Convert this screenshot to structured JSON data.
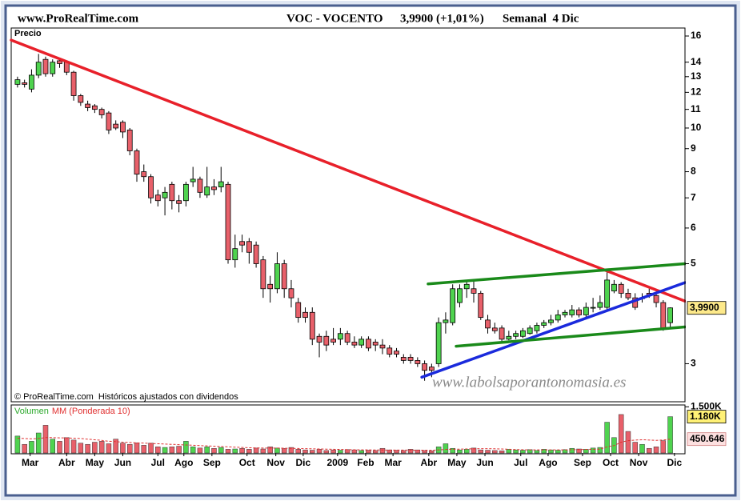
{
  "chart_data": {
    "type": "candlestick",
    "site": "www.ProRealTime.com",
    "title": "VOC - VOCENTO",
    "quote": "3,9900 (+1,01%)",
    "period": "Semanal  4 Dic",
    "label": "Precio",
    "footnote": "© ProRealTime.com  Históricos ajustados con dividendos",
    "watermark": "www.labolsaporantonomasia.es",
    "log_scale": true,
    "up_color": "#4fd34f",
    "down_color": "#e8606a",
    "x": [
      0,
      1,
      2,
      3,
      4,
      5,
      6,
      7,
      8,
      9,
      10,
      11,
      12,
      13,
      14,
      15,
      16,
      17,
      18,
      19,
      20,
      21,
      22,
      23,
      24,
      25,
      26,
      27,
      28,
      29,
      30,
      31,
      32,
      33,
      34,
      35,
      36,
      37,
      38,
      39,
      40,
      41,
      42,
      43,
      44,
      45,
      46,
      47,
      48,
      49,
      50,
      51,
      52,
      53,
      54,
      55,
      56,
      57,
      58,
      59,
      60,
      61,
      62,
      63,
      64,
      65,
      66,
      67,
      68,
      69,
      70,
      71,
      72,
      73,
      74,
      75,
      76,
      77,
      78,
      79,
      80,
      81,
      82,
      83,
      84,
      85,
      86,
      87,
      88,
      89,
      90,
      91,
      92,
      93
    ],
    "open": [
      12.5,
      12.6,
      12.2,
      13.1,
      14.2,
      13.2,
      14.1,
      14.0,
      13.3,
      11.8,
      11.3,
      11.2,
      11.0,
      10.8,
      10.2,
      10.3,
      9.9,
      8.9,
      8.0,
      7.8,
      7.1,
      7.0,
      7.5,
      6.9,
      6.9,
      7.6,
      7.7,
      7.1,
      7.4,
      7.4,
      7.5,
      5.1,
      5.6,
      5.6,
      5.5,
      5.1,
      4.5,
      4.4,
      5.0,
      4.4,
      4.1,
      3.9,
      3.9,
      3.45,
      3.45,
      3.4,
      3.4,
      3.5,
      3.35,
      3.3,
      3.4,
      3.35,
      3.3,
      3.25,
      3.2,
      3.1,
      3.1,
      3.05,
      3.0,
      2.95,
      3.0,
      3.7,
      3.7,
      4.1,
      4.4,
      4.4,
      4.3,
      3.75,
      3.6,
      3.6,
      3.4,
      3.45,
      3.45,
      3.5,
      3.55,
      3.65,
      3.7,
      3.75,
      3.85,
      3.85,
      3.95,
      3.85,
      4.0,
      4.0,
      4.0,
      4.35,
      4.5,
      4.3,
      4.2,
      4.2,
      4.3,
      4.25,
      4.1,
      3.7
    ],
    "high": [
      13.0,
      12.8,
      13.5,
      14.6,
      14.4,
      14.2,
      14.3,
      14.1,
      13.4,
      11.9,
      11.5,
      11.3,
      11.1,
      10.9,
      10.4,
      10.4,
      10.0,
      9.0,
      8.3,
      7.9,
      7.3,
      7.4,
      7.6,
      7.1,
      7.6,
      8.2,
      7.8,
      8.2,
      7.7,
      8.2,
      7.6,
      5.8,
      5.8,
      5.7,
      5.6,
      5.2,
      4.7,
      5.3,
      5.1,
      4.6,
      4.2,
      4.0,
      4.0,
      3.5,
      3.55,
      3.6,
      3.6,
      3.55,
      3.45,
      3.45,
      3.45,
      3.4,
      3.4,
      3.3,
      3.25,
      3.15,
      3.15,
      3.1,
      3.05,
      3.0,
      3.8,
      3.9,
      4.5,
      4.5,
      4.6,
      4.6,
      4.35,
      3.85,
      3.7,
      3.65,
      3.55,
      3.55,
      3.6,
      3.65,
      3.7,
      3.75,
      3.85,
      3.95,
      3.95,
      4.05,
      4.0,
      4.1,
      4.2,
      4.25,
      4.8,
      4.6,
      4.55,
      4.4,
      4.3,
      4.3,
      4.4,
      4.3,
      4.15,
      4.0
    ],
    "low": [
      12.3,
      12.3,
      12.0,
      12.9,
      13.0,
      13.0,
      13.6,
      13.1,
      11.5,
      11.2,
      10.9,
      10.8,
      10.5,
      9.7,
      9.9,
      9.5,
      8.7,
      7.6,
      7.6,
      6.8,
      6.7,
      6.4,
      6.6,
      6.5,
      6.7,
      7.4,
      7.0,
      7.0,
      7.1,
      7.2,
      5.0,
      4.9,
      5.3,
      5.0,
      4.9,
      4.2,
      4.1,
      4.3,
      4.2,
      4.0,
      3.7,
      3.7,
      3.3,
      3.1,
      3.2,
      3.3,
      3.3,
      3.3,
      3.25,
      3.25,
      3.2,
      3.2,
      3.15,
      3.1,
      3.1,
      3.0,
      3.0,
      2.95,
      2.75,
      2.8,
      2.95,
      3.5,
      3.65,
      4.0,
      4.2,
      4.1,
      3.75,
      3.5,
      3.5,
      3.35,
      3.38,
      3.4,
      3.42,
      3.48,
      3.5,
      3.6,
      3.65,
      3.7,
      3.8,
      3.8,
      3.8,
      3.8,
      3.9,
      3.95,
      3.95,
      4.3,
      4.2,
      4.15,
      3.95,
      4.1,
      4.2,
      4.0,
      3.55,
      3.6
    ],
    "close": [
      12.8,
      12.5,
      13.1,
      14.0,
      13.2,
      14.0,
      13.9,
      13.3,
      11.8,
      11.4,
      11.1,
      11.0,
      10.7,
      9.9,
      10.0,
      9.8,
      8.9,
      7.9,
      7.8,
      7.0,
      6.9,
      7.2,
      6.9,
      6.8,
      7.5,
      7.7,
      7.2,
      7.4,
      7.3,
      7.6,
      5.1,
      5.4,
      5.5,
      5.3,
      5.0,
      4.4,
      4.4,
      5.0,
      4.4,
      4.2,
      3.8,
      3.8,
      3.4,
      3.35,
      3.3,
      3.35,
      3.5,
      3.35,
      3.3,
      3.4,
      3.25,
      3.3,
      3.25,
      3.15,
      3.15,
      3.05,
      3.05,
      3.0,
      2.9,
      2.9,
      3.7,
      3.75,
      4.4,
      4.4,
      4.5,
      4.3,
      3.8,
      3.6,
      3.55,
      3.4,
      3.45,
      3.5,
      3.55,
      3.6,
      3.65,
      3.7,
      3.75,
      3.85,
      3.9,
      3.95,
      3.85,
      4.0,
      4.0,
      4.1,
      4.6,
      4.5,
      4.3,
      4.2,
      4.0,
      4.2,
      4.25,
      4.1,
      3.6,
      3.99
    ],
    "price_marker": {
      "value": 3.99,
      "label": "3,9900"
    },
    "trendlines": [
      {
        "color": "#e8202a",
        "x": [
          -0.9,
          95.1
        ],
        "values": [
          15.67,
          4.13
        ]
      },
      {
        "color": "#1a2adc",
        "x": [
          57.6,
          95.1
        ],
        "values": [
          2.8,
          4.54
        ]
      },
      {
        "color": "#1a8a1a",
        "x": [
          58.5,
          95.1
        ],
        "values": [
          4.51,
          5.0
        ]
      },
      {
        "color": "#1a8a1a",
        "x": [
          62.5,
          95.1
        ],
        "values": [
          3.28,
          3.62
        ]
      }
    ],
    "xlim": [
      -0.9,
      95.1
    ],
    "ylim": [
      2.47,
      16.6
    ],
    "yticks": [
      3,
      5,
      6,
      7,
      8,
      9,
      10,
      11,
      12,
      13,
      14,
      16
    ],
    "xticks": [
      {
        "value": 1.8,
        "label": "Mar"
      },
      {
        "value": 7.0,
        "label": "Abr"
      },
      {
        "value": 11.0,
        "label": "May"
      },
      {
        "value": 15.0,
        "label": "Jun"
      },
      {
        "value": 20.0,
        "label": "Jul"
      },
      {
        "value": 23.7,
        "label": "Ago"
      },
      {
        "value": 27.7,
        "label": "Sep"
      },
      {
        "value": 32.7,
        "label": "Oct"
      },
      {
        "value": 36.8,
        "label": "Nov"
      },
      {
        "value": 40.7,
        "label": "Dic"
      },
      {
        "value": 45.6,
        "label": "2009"
      },
      {
        "value": 49.6,
        "label": "Feb"
      },
      {
        "value": 53.5,
        "label": "Mar"
      },
      {
        "value": 58.6,
        "label": "Abr"
      },
      {
        "value": 62.6,
        "label": "May"
      },
      {
        "value": 66.6,
        "label": "Jun"
      },
      {
        "value": 71.7,
        "label": "Jul"
      },
      {
        "value": 75.6,
        "label": "Ago"
      },
      {
        "value": 80.5,
        "label": "Sep"
      },
      {
        "value": 84.5,
        "label": "Oct"
      },
      {
        "value": 88.5,
        "label": "Nov"
      },
      {
        "value": 93.6,
        "label": "Dic"
      }
    ],
    "volume": {
      "title": "Volumen",
      "title_color": "#2aa82a",
      "values": [
        550000,
        280000,
        380000,
        650000,
        900000,
        450000,
        380000,
        500000,
        420000,
        320000,
        280000,
        350000,
        380000,
        300000,
        450000,
        320000,
        280000,
        330000,
        250000,
        320000,
        200000,
        180000,
        200000,
        220000,
        380000,
        200000,
        160000,
        200000,
        150000,
        180000,
        120000,
        130000,
        150000,
        120000,
        160000,
        130000,
        200000,
        160000,
        150000,
        180000,
        120000,
        100000,
        90000,
        120000,
        80000,
        100000,
        90000,
        110000,
        100000,
        80000,
        90000,
        80000,
        150000,
        100000,
        90000,
        80000,
        120000,
        100000,
        80000,
        70000,
        200000,
        300000,
        150000,
        100000,
        120000,
        160000,
        100000,
        90000,
        80000,
        70000,
        120000,
        100000,
        90000,
        110000,
        80000,
        120000,
        100000,
        90000,
        110000,
        150000,
        130000,
        120000,
        160000,
        180000,
        1000000,
        500000,
        1250000,
        700000,
        350000,
        280000,
        150000,
        200000,
        400000,
        1180000
      ],
      "ma": {
        "name": "MM (Ponderada 10)",
        "color": "#e03030",
        "values": [
          480000,
          470000,
          460000,
          470000,
          500000,
          500000,
          490000,
          490000,
          480000,
          470000,
          450000,
          430000,
          410000,
          380000,
          370000,
          350000,
          340000,
          330000,
          320000,
          310000,
          300000,
          290000,
          280000,
          270000,
          260000,
          250000,
          240000,
          230000,
          220000,
          210000,
          200000,
          190000,
          180000,
          170000,
          165000,
          160000,
          160000,
          160000,
          155000,
          150000,
          145000,
          140000,
          135000,
          130000,
          125000,
          120000,
          115000,
          110000,
          105000,
          100000,
          100000,
          98000,
          96000,
          95000,
          95000,
          94000,
          93000,
          92000,
          90000,
          88000,
          100000,
          115000,
          120000,
          125000,
          130000,
          135000,
          140000,
          140000,
          135000,
          130000,
          120000,
          110000,
          105000,
          100000,
          100000,
          100000,
          100000,
          100000,
          100000,
          105000,
          110000,
          115000,
          120000,
          125000,
          200000,
          240000,
          350000,
          400000,
          420000,
          430000,
          420000,
          410000,
          420000,
          450646
        ]
      },
      "markers": [
        {
          "value": 1180000,
          "label": "1.180K"
        },
        {
          "value": 450646,
          "label": "450.646"
        }
      ],
      "ylim": [
        0,
        1560000
      ],
      "yticks": [
        {
          "value": 1500000,
          "label": "1.500K"
        }
      ]
    }
  }
}
